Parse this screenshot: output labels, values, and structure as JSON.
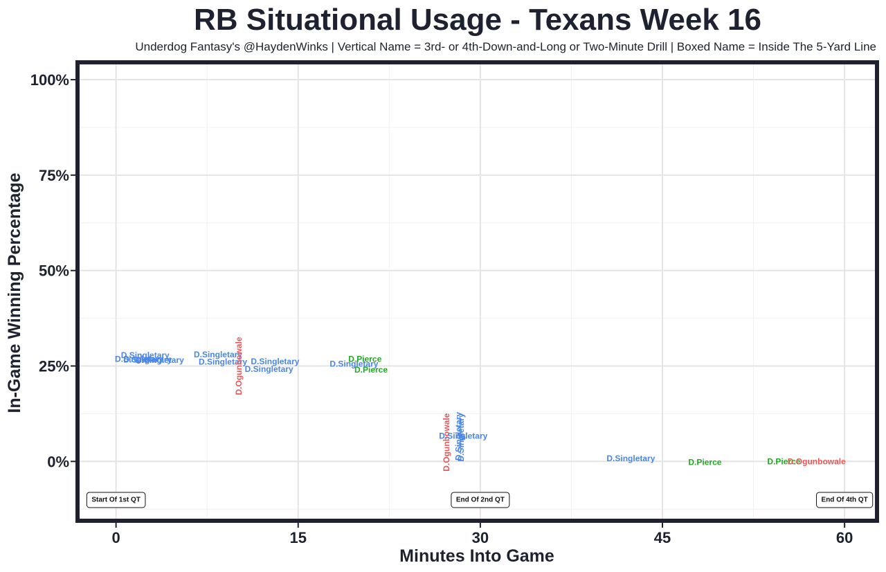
{
  "chart_data": {
    "type": "scatter",
    "title": "RB Situational Usage - Texans Week 16",
    "subtitle": "Underdog Fantasy's @HaydenWinks | Vertical Name = 3rd- or 4th-Down-and-Long or Two-Minute Drill | Boxed Name = Inside The 5-Yard Line",
    "xlabel": "Minutes Into Game",
    "ylabel": "In-Game Winning Percentage",
    "xlim": [
      -3,
      62.5
    ],
    "ylim": [
      -0.15,
      1.04
    ],
    "x_ticks": [
      0,
      15,
      30,
      45,
      60
    ],
    "x_tick_labels": [
      "0",
      "15",
      "30",
      "45",
      "60"
    ],
    "y_ticks": [
      0,
      0.25,
      0.5,
      0.75,
      1.0
    ],
    "y_tick_labels": [
      "0%",
      "25%",
      "50%",
      "75%",
      "100%"
    ],
    "grid": true,
    "player_colors": {
      "D.Singletary": "#4a86e8",
      "D.Ogunbowale": "#ee5555",
      "D.Pierce": "#22aa22"
    },
    "points": [
      {
        "player": "D.Singletary",
        "x": 2.4,
        "y": 0.278,
        "vertical": false
      },
      {
        "player": "D.Singletary",
        "x": 1.9,
        "y": 0.268,
        "vertical": false
      },
      {
        "player": "D.Singletary",
        "x": 2.6,
        "y": 0.266,
        "vertical": false
      },
      {
        "player": "D.Singletary",
        "x": 3.6,
        "y": 0.265,
        "vertical": false
      },
      {
        "player": "D.Singletary",
        "x": 8.4,
        "y": 0.28,
        "vertical": false
      },
      {
        "player": "D.Singletary",
        "x": 8.8,
        "y": 0.261,
        "vertical": false
      },
      {
        "player": "D.Ogunbowale",
        "x": 10.1,
        "y": 0.25,
        "vertical": true
      },
      {
        "player": "D.Singletary",
        "x": 13.1,
        "y": 0.262,
        "vertical": false
      },
      {
        "player": "D.Singletary",
        "x": 12.6,
        "y": 0.242,
        "vertical": false
      },
      {
        "player": "D.Singletary",
        "x": 19.6,
        "y": 0.255,
        "vertical": false
      },
      {
        "player": "D.Pierce",
        "x": 20.5,
        "y": 0.268,
        "vertical": false
      },
      {
        "player": "D.Pierce",
        "x": 21.0,
        "y": 0.24,
        "vertical": false
      },
      {
        "player": "D.Ogunbowale",
        "x": 27.2,
        "y": 0.05,
        "vertical": true
      },
      {
        "player": "D.Singletary",
        "x": 28.2,
        "y": 0.066,
        "vertical": true
      },
      {
        "player": "D.Singletary",
        "x": 28.4,
        "y": 0.063,
        "vertical": true
      },
      {
        "player": "D.Singletary",
        "x": 28.6,
        "y": 0.067,
        "vertical": false
      },
      {
        "player": "D.Singletary",
        "x": 42.4,
        "y": 0.008,
        "vertical": false
      },
      {
        "player": "D.Pierce",
        "x": 48.5,
        "y": -0.002,
        "vertical": false
      },
      {
        "player": "D.Pierce",
        "x": 55.0,
        "y": 0.0,
        "vertical": false
      },
      {
        "player": "D.Ogunbowale",
        "x": 57.7,
        "y": 0.0,
        "vertical": false
      }
    ],
    "annotations": [
      {
        "text": "Start Of 1st QT",
        "x": 0,
        "y": -0.101
      },
      {
        "text": "End Of 2nd QT",
        "x": 30,
        "y": -0.101
      },
      {
        "text": "End Of 4th QT",
        "x": 60,
        "y": -0.101
      }
    ]
  }
}
